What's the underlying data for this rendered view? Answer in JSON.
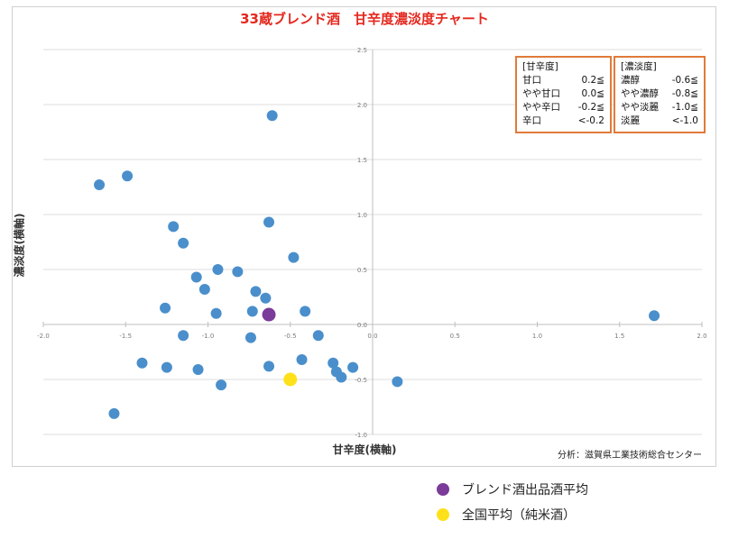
{
  "chart_data": {
    "type": "scatter",
    "title": "33蔵ブレンド酒　甘辛度濃淡度チャート",
    "title_color": "#e4281e",
    "xlabel": "甘辛度(横軸)",
    "ylabel": "濃淡度(横軸)",
    "xlim": [
      -2.0,
      2.0
    ],
    "ylim": [
      -1.0,
      2.5
    ],
    "x_ticks": [
      "-2.0",
      "-1.5",
      "-1.0",
      "-0.5",
      "0.0",
      "0.5",
      "1.0",
      "1.5",
      "2.0"
    ],
    "y_ticks": [
      "2.5",
      "2.0",
      "1.5",
      "1.0",
      "0.5",
      "0.0",
      "-0.5",
      "-1.0"
    ],
    "grid": true,
    "source": "分析：滋賀県工業技術総合センター",
    "series": [
      {
        "color": "#4a8fcb",
        "points": [
          [
            -0.61,
            1.9
          ],
          [
            -1.49,
            1.35
          ],
          [
            -1.66,
            1.27
          ],
          [
            -1.21,
            0.89
          ],
          [
            -0.63,
            0.93
          ],
          [
            -1.15,
            0.74
          ],
          [
            -0.48,
            0.61
          ],
          [
            -0.94,
            0.5
          ],
          [
            -0.82,
            0.48
          ],
          [
            -1.07,
            0.43
          ],
          [
            -1.02,
            0.32
          ],
          [
            -0.71,
            0.3
          ],
          [
            -0.65,
            0.24
          ],
          [
            -1.26,
            0.15
          ],
          [
            -0.73,
            0.12
          ],
          [
            -0.41,
            0.12
          ],
          [
            -0.95,
            0.1
          ],
          [
            -1.15,
            -0.1
          ],
          [
            -0.74,
            -0.12
          ],
          [
            -0.33,
            -0.1
          ],
          [
            -0.43,
            -0.32
          ],
          [
            -1.4,
            -0.35
          ],
          [
            -1.25,
            -0.39
          ],
          [
            -0.63,
            -0.38
          ],
          [
            -1.06,
            -0.41
          ],
          [
            -0.24,
            -0.35
          ],
          [
            -0.22,
            -0.43
          ],
          [
            -0.19,
            -0.48
          ],
          [
            -0.12,
            -0.39
          ],
          [
            0.15,
            -0.52
          ],
          [
            -0.92,
            -0.55
          ],
          [
            -1.57,
            -0.81
          ],
          [
            1.71,
            0.08
          ]
        ]
      },
      {
        "name": "ブレンド酒出品酒平均",
        "color": "#7a3b99",
        "points": [
          [
            -0.63,
            0.09
          ]
        ]
      },
      {
        "name": "全国平均（純米酒）",
        "color": "#ffe11a",
        "points": [
          [
            -0.5,
            -0.5
          ]
        ]
      }
    ],
    "legend_amakara": {
      "header": "[甘辛度]",
      "rows": [
        [
          "甘口",
          "0.2≦"
        ],
        [
          "やや甘口",
          "0.0≦"
        ],
        [
          "やや辛口",
          "-0.2≦"
        ],
        [
          "辛口",
          "<-0.2"
        ]
      ]
    },
    "legend_notan": {
      "header": "[濃淡度]",
      "rows": [
        [
          "濃醇",
          "-0.6≦"
        ],
        [
          "やや濃醇",
          "-0.8≦"
        ],
        [
          "やや淡麗",
          "-1.0≦"
        ],
        [
          "淡麗",
          "<-1.0"
        ]
      ]
    },
    "legend_border_color": "#e07b39"
  }
}
